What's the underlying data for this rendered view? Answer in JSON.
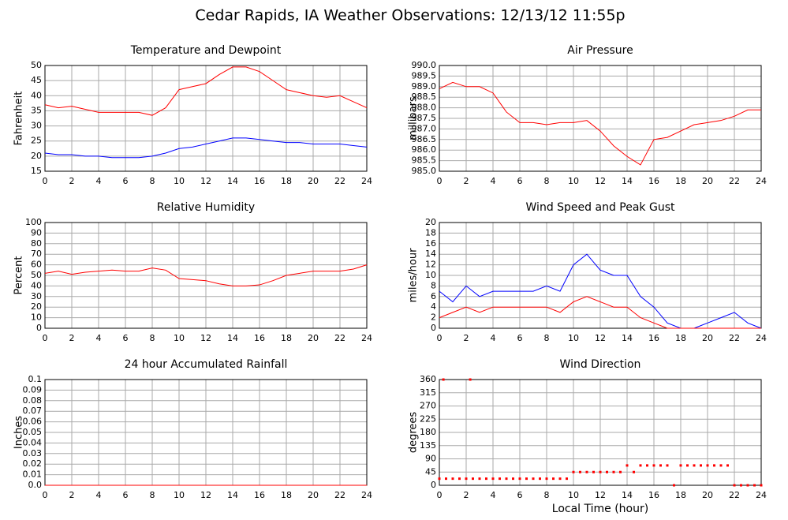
{
  "title": "Cedar Rapids, IA Weather Observations: 12/13/12 11:55p",
  "chart_data": [
    {
      "type": "line",
      "title": "Temperature and Dewpoint",
      "ylabel": "Fahrenheit",
      "x": [
        0,
        1,
        2,
        3,
        4,
        5,
        6,
        7,
        8,
        9,
        10,
        11,
        12,
        13,
        14,
        15,
        16,
        17,
        18,
        19,
        20,
        21,
        22,
        23,
        24
      ],
      "series": [
        {
          "color": "#ff0000",
          "values": [
            37,
            36,
            36.5,
            35.5,
            34.5,
            34.5,
            34.5,
            34.5,
            33.5,
            36,
            42,
            43,
            44,
            47,
            49.5,
            49.5,
            48,
            45,
            42,
            41,
            40,
            39.5,
            40,
            38,
            36
          ]
        },
        {
          "color": "#0000ff",
          "values": [
            21,
            20.5,
            20.5,
            20,
            20,
            19.5,
            19.5,
            19.5,
            20,
            21,
            22.5,
            23,
            24,
            25,
            26,
            26,
            25.5,
            25,
            24.5,
            24.5,
            24,
            24,
            24,
            23.5,
            23
          ]
        }
      ],
      "xlim": [
        0,
        24
      ],
      "xticks": [
        0,
        2,
        4,
        6,
        8,
        10,
        12,
        14,
        16,
        18,
        20,
        22,
        24
      ],
      "ylim": [
        15,
        50
      ],
      "yticks": [
        15,
        20,
        25,
        30,
        35,
        40,
        45,
        50
      ],
      "grid": true
    },
    {
      "type": "line",
      "title": "Air Pressure",
      "ylabel": "millibars",
      "x": [
        0,
        1,
        2,
        3,
        4,
        5,
        6,
        7,
        8,
        9,
        10,
        11,
        12,
        13,
        14,
        15,
        16,
        17,
        18,
        19,
        20,
        21,
        22,
        23,
        24
      ],
      "series": [
        {
          "color": "#ff0000",
          "values": [
            988.9,
            989.2,
            989.0,
            989.0,
            988.7,
            987.8,
            987.3,
            987.3,
            987.2,
            987.3,
            987.3,
            987.4,
            986.9,
            986.2,
            985.7,
            985.3,
            986.5,
            986.6,
            986.9,
            987.2,
            987.3,
            987.4,
            987.6,
            987.9,
            987.9
          ]
        }
      ],
      "xlim": [
        0,
        24
      ],
      "xticks": [
        0,
        2,
        4,
        6,
        8,
        10,
        12,
        14,
        16,
        18,
        20,
        22,
        24
      ],
      "ylim": [
        985,
        990
      ],
      "yticks": [
        {
          "value": 985,
          "label": "985.0"
        },
        985.5,
        {
          "value": 986,
          "label": "986.0"
        },
        986.5,
        {
          "value": 987,
          "label": "987.0"
        },
        987.5,
        {
          "value": 988,
          "label": "988.0"
        },
        988.5,
        {
          "value": 989,
          "label": "989.0"
        },
        989.5,
        {
          "value": 990,
          "label": "990.0"
        }
      ],
      "grid": true
    },
    {
      "type": "line",
      "title": "Relative Humidity",
      "ylabel": "Percent",
      "x": [
        0,
        1,
        2,
        3,
        4,
        5,
        6,
        7,
        8,
        9,
        10,
        11,
        12,
        13,
        14,
        15,
        16,
        17,
        18,
        19,
        20,
        21,
        22,
        23,
        24
      ],
      "series": [
        {
          "color": "#ff0000",
          "values": [
            52,
            54,
            51,
            53,
            54,
            55,
            54,
            54,
            57,
            55,
            47,
            46,
            45,
            42,
            40,
            40,
            41,
            45,
            50,
            52,
            54,
            54,
            54,
            56,
            60
          ]
        }
      ],
      "xlim": [
        0,
        24
      ],
      "xticks": [
        0,
        2,
        4,
        6,
        8,
        10,
        12,
        14,
        16,
        18,
        20,
        22,
        24
      ],
      "ylim": [
        0,
        100
      ],
      "yticks": [
        0,
        10,
        20,
        30,
        40,
        50,
        60,
        70,
        80,
        90,
        100
      ],
      "grid": true
    },
    {
      "type": "line",
      "title": "Wind Speed and Peak Gust",
      "ylabel": "miles/hour",
      "x": [
        0,
        1,
        2,
        3,
        4,
        5,
        6,
        7,
        8,
        9,
        10,
        11,
        12,
        13,
        14,
        15,
        16,
        17,
        18,
        19,
        20,
        21,
        22,
        23,
        24
      ],
      "series": [
        {
          "color": "#0000ff",
          "values": [
            7,
            5,
            8,
            6,
            7,
            7,
            7,
            7,
            8,
            7,
            12,
            14,
            11,
            10,
            10,
            6,
            4,
            1,
            0,
            0,
            1,
            2,
            3,
            1,
            0
          ]
        },
        {
          "color": "#ff0000",
          "values": [
            2,
            3,
            4,
            3,
            4,
            4,
            4,
            4,
            4,
            3,
            5,
            6,
            5,
            4,
            4,
            2,
            1,
            0,
            0,
            0,
            0,
            0,
            0,
            0,
            0
          ]
        }
      ],
      "xlim": [
        0,
        24
      ],
      "xticks": [
        0,
        2,
        4,
        6,
        8,
        10,
        12,
        14,
        16,
        18,
        20,
        22,
        24
      ],
      "ylim": [
        0,
        20
      ],
      "yticks": [
        0,
        2,
        4,
        6,
        8,
        10,
        12,
        14,
        16,
        18,
        20
      ],
      "grid": true
    },
    {
      "type": "line",
      "title": "24 hour Accumulated Rainfall",
      "ylabel": "Inches",
      "x": [
        0,
        24
      ],
      "series": [
        {
          "color": "#ff0000",
          "values": [
            0,
            0
          ]
        }
      ],
      "xlim": [
        0,
        24
      ],
      "xticks": [
        0,
        2,
        4,
        6,
        8,
        10,
        12,
        14,
        16,
        18,
        20,
        22,
        24
      ],
      "ylim": [
        0,
        0.1
      ],
      "yticks": [
        {
          "value": 0,
          "label": "0.0"
        },
        0.01,
        0.02,
        0.03,
        0.04,
        0.05,
        0.06,
        0.07,
        0.08,
        0.09,
        0.1
      ],
      "grid": true
    },
    {
      "type": "scatter",
      "title": "Wind Direction",
      "ylabel": "degrees",
      "xlabel": "Local Time (hour)",
      "x": [
        0,
        0.3,
        0.5,
        1,
        1.5,
        2,
        2.3,
        2.5,
        3,
        3.5,
        4,
        4.5,
        5,
        5.5,
        6,
        6.5,
        7,
        7.5,
        8,
        8.5,
        9,
        9.5,
        10,
        10.5,
        11,
        11.5,
        12,
        12.5,
        13,
        13.5,
        14,
        14.5,
        15,
        15.5,
        16,
        16.5,
        17,
        17.5,
        18,
        18.5,
        19,
        19.5,
        20,
        20.5,
        21,
        21.5,
        22,
        22.5,
        23,
        23.5,
        24
      ],
      "series": [
        {
          "color": "#ff0000",
          "values": [
            22.5,
            360,
            22.5,
            22.5,
            22.5,
            22.5,
            360,
            22.5,
            22.5,
            22.5,
            22.5,
            22.5,
            22.5,
            22.5,
            22.5,
            22.5,
            22.5,
            22.5,
            22.5,
            22.5,
            22.5,
            22.5,
            45,
            45,
            45,
            45,
            45,
            45,
            45,
            45,
            67.5,
            45,
            67.5,
            67.5,
            67.5,
            67.5,
            67.5,
            0,
            67.5,
            67.5,
            67.5,
            67.5,
            67.5,
            67.5,
            67.5,
            67.5,
            0,
            0,
            0,
            0,
            0
          ]
        }
      ],
      "xlim": [
        0,
        24
      ],
      "xticks": [
        0,
        2,
        4,
        6,
        8,
        10,
        12,
        14,
        16,
        18,
        20,
        22,
        24
      ],
      "ylim": [
        0,
        360
      ],
      "yticks": [
        0,
        45,
        90,
        135,
        180,
        225,
        270,
        315,
        360
      ],
      "grid": true
    }
  ]
}
